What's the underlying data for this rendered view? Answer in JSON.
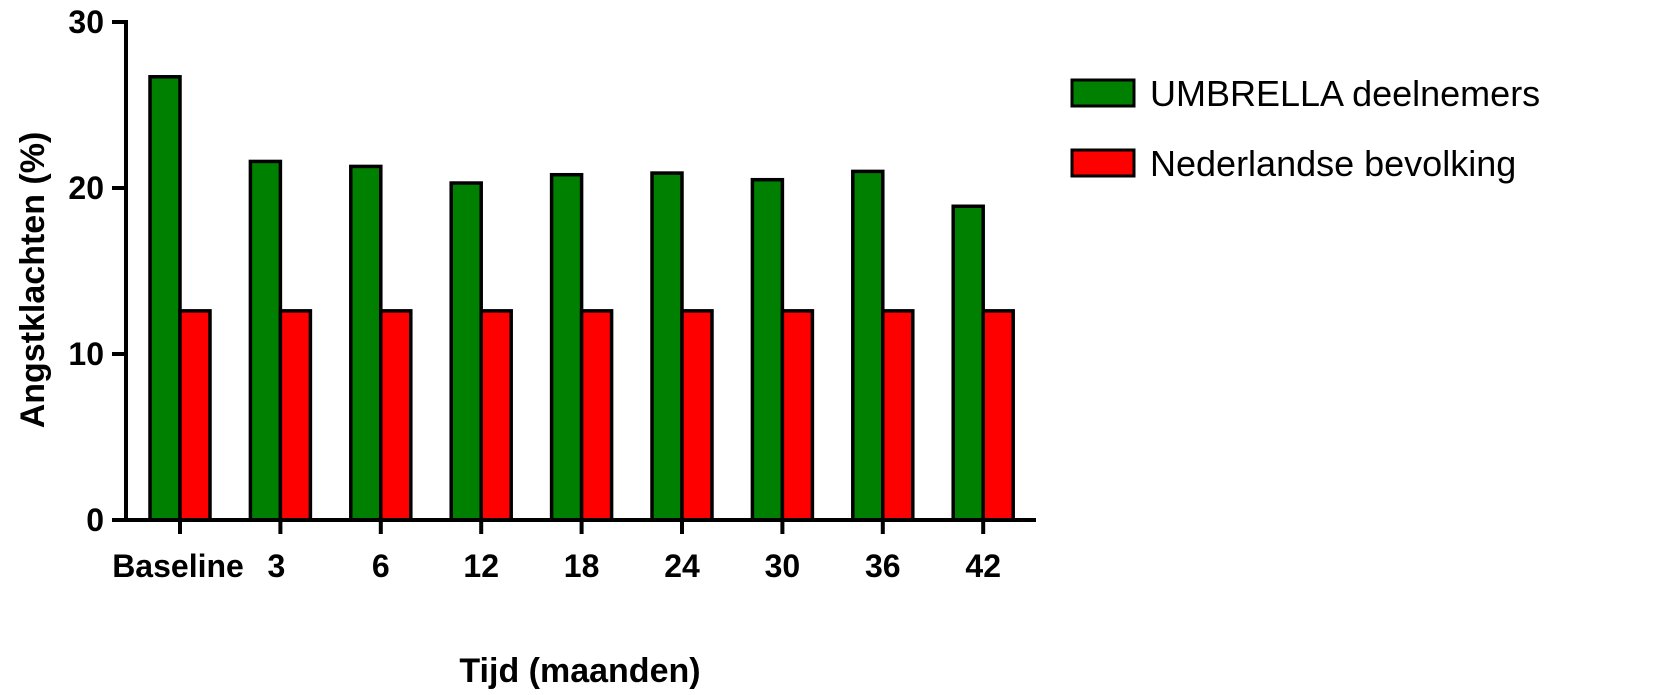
{
  "chart_data": {
    "type": "bar",
    "title": "",
    "xlabel": "Tijd (maanden)",
    "ylabel": "Angstklachten (%)",
    "ylim": [
      0,
      30
    ],
    "yticks": [
      "0",
      "10",
      "20",
      "30"
    ],
    "categories": [
      "Baseline",
      "3",
      "6",
      "12",
      "18",
      "24",
      "30",
      "36",
      "42"
    ],
    "series": [
      {
        "name": "UMBRELLA deelnemers",
        "color": "#008000",
        "values": [
          26.7,
          21.6,
          21.3,
          20.3,
          20.8,
          20.9,
          20.5,
          21.0,
          18.9
        ]
      },
      {
        "name": "Nederlandse bevolking",
        "color": "#ff0000",
        "values": [
          12.6,
          12.6,
          12.6,
          12.6,
          12.6,
          12.6,
          12.6,
          12.6,
          12.6
        ]
      }
    ],
    "legend_position": "right",
    "grid": false
  }
}
